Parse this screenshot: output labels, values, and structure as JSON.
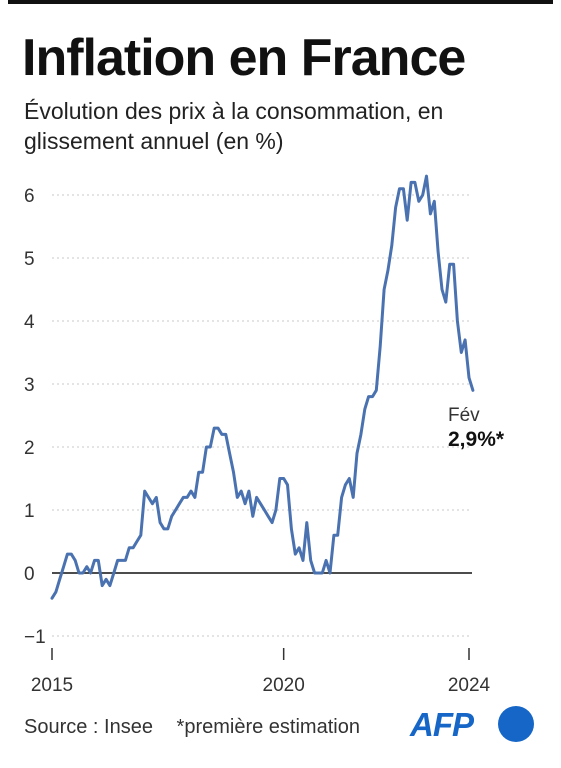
{
  "title": "Inflation en France",
  "subtitle": "Évolution des prix à la consommation, en glissement annuel (en %)",
  "source": "Source : Insee",
  "note": "*première estimation",
  "logo_text": "AFP",
  "colors": {
    "line": "#4a72b0",
    "grid": "#c8c8c8",
    "brand": "#1566c6"
  },
  "chart_data": {
    "type": "line",
    "title": "Inflation en France",
    "ylim": [
      -1,
      6.5
    ],
    "yticks": [
      -1,
      0,
      1,
      2,
      3,
      4,
      5,
      6
    ],
    "ytick_labels": [
      "−1",
      "0",
      "1",
      "2",
      "3",
      "4",
      "5",
      "6"
    ],
    "xlim": [
      2015.0,
      2024.17
    ],
    "xticks": [
      2015,
      2020,
      2024
    ],
    "xtick_labels": [
      "2015",
      "2020",
      "2024"
    ],
    "grid": "horizontal dotted",
    "annotation": {
      "label": "Fév",
      "value_text": "2,9%*"
    },
    "x_start": "2015-01",
    "x_step": "1 month",
    "values": [
      -0.4,
      -0.3,
      -0.1,
      0.1,
      0.3,
      0.3,
      0.2,
      0.0,
      0.0,
      0.1,
      0.0,
      0.2,
      0.2,
      -0.2,
      -0.1,
      -0.2,
      0.0,
      0.2,
      0.2,
      0.2,
      0.4,
      0.4,
      0.5,
      0.6,
      1.3,
      1.2,
      1.1,
      1.2,
      0.8,
      0.7,
      0.7,
      0.9,
      1.0,
      1.1,
      1.2,
      1.2,
      1.3,
      1.2,
      1.6,
      1.6,
      2.0,
      2.0,
      2.3,
      2.3,
      2.2,
      2.2,
      1.9,
      1.6,
      1.2,
      1.3,
      1.1,
      1.3,
      0.9,
      1.2,
      1.1,
      1.0,
      0.9,
      0.8,
      1.0,
      1.5,
      1.5,
      1.4,
      0.7,
      0.3,
      0.4,
      0.2,
      0.8,
      0.2,
      0.0,
      0.0,
      0.0,
      0.2,
      0.0,
      0.6,
      0.6,
      1.2,
      1.4,
      1.5,
      1.2,
      1.9,
      2.2,
      2.6,
      2.8,
      2.8,
      2.9,
      3.6,
      4.5,
      4.8,
      5.2,
      5.8,
      6.1,
      6.1,
      5.6,
      6.2,
      6.2,
      5.9,
      6.0,
      6.3,
      5.7,
      5.9,
      5.1,
      4.5,
      4.3,
      4.9,
      4.9,
      4.0,
      3.5,
      3.7,
      3.1,
      2.9
    ]
  }
}
